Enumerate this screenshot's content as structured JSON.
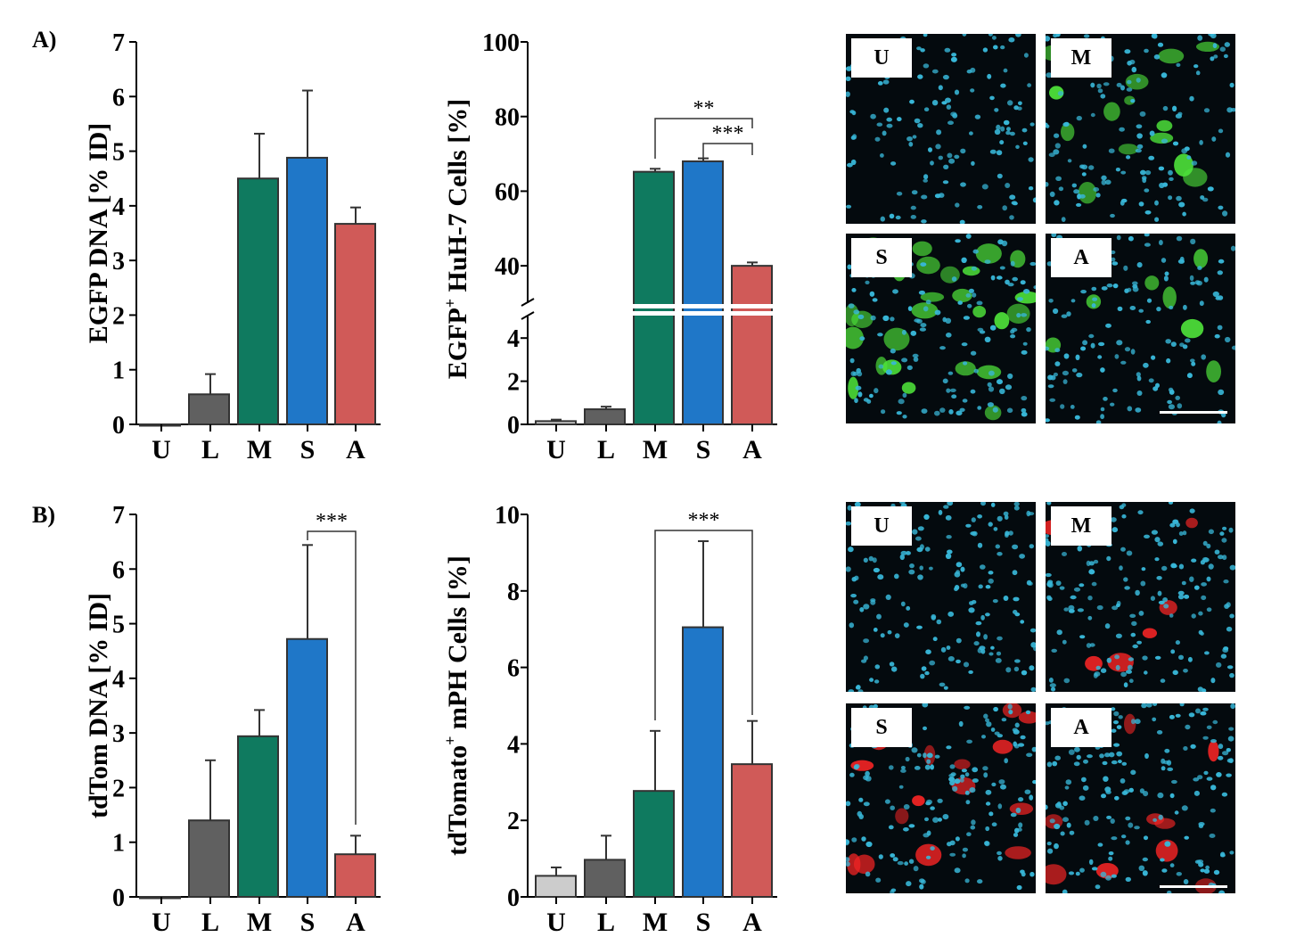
{
  "panel_labels": [
    "A)",
    "B)"
  ],
  "colors": {
    "U": "#cccccc",
    "L": "#606060",
    "M": "#0f7a5f",
    "S": "#1f77c8",
    "A": "#d05a58",
    "nuclei": "#38b7d8",
    "egfp": "#4ee23a",
    "tdtomato": "#f02424"
  },
  "micrographs": {
    "egfp": [
      {
        "label": "U"
      },
      {
        "label": "M"
      },
      {
        "label": "S"
      },
      {
        "label": "A"
      }
    ],
    "tdtomato": [
      {
        "label": "U"
      },
      {
        "label": "M"
      },
      {
        "label": "S"
      },
      {
        "label": "A"
      }
    ]
  },
  "chart_data": [
    {
      "type": "bar",
      "panel": "A",
      "categories": [
        "U",
        "L",
        "M",
        "S",
        "A"
      ],
      "values": [
        0.0,
        0.55,
        4.5,
        4.88,
        3.67
      ],
      "errors": [
        0.0,
        0.37,
        0.82,
        1.23,
        0.3
      ],
      "ylabel": "EGFP DNA [% ID]",
      "ylim": [
        0,
        7
      ],
      "yticks": [
        0,
        1,
        2,
        3,
        4,
        5,
        6,
        7
      ],
      "significance": []
    },
    {
      "type": "bar",
      "panel": "A",
      "categories": [
        "U",
        "L",
        "M",
        "S",
        "A"
      ],
      "values": [
        0.15,
        0.7,
        65.2,
        68.0,
        40.0
      ],
      "errors": [
        0.07,
        0.12,
        0.8,
        0.8,
        0.9
      ],
      "ylabel": "EGFP+ HuH-7 Cells [%]",
      "ylabel_main": "EGFP",
      "ylabel_sup": "+",
      "ylabel_rest": " HuH-7 Cells [%]",
      "axis_break": {
        "lower_ylim": [
          0,
          5
        ],
        "lower_yticks": [
          0,
          2,
          4
        ],
        "upper_ylim": [
          30,
          100
        ],
        "upper_yticks": [
          40,
          60,
          80,
          100
        ]
      },
      "significance": [
        {
          "from": "M",
          "to": "A",
          "label": "**"
        },
        {
          "from": "S",
          "to": "A",
          "label": "***"
        }
      ]
    },
    {
      "type": "bar",
      "panel": "B",
      "categories": [
        "U",
        "L",
        "M",
        "S",
        "A"
      ],
      "values": [
        0.0,
        1.4,
        2.94,
        4.72,
        0.78
      ],
      "errors": [
        0.0,
        1.1,
        0.48,
        1.72,
        0.34
      ],
      "ylabel": "tdTom DNA [% ID]",
      "ylim": [
        0,
        7
      ],
      "yticks": [
        0,
        1,
        2,
        3,
        4,
        5,
        6,
        7
      ],
      "significance": [
        {
          "from": "S",
          "to": "A",
          "label": "***"
        }
      ]
    },
    {
      "type": "bar",
      "panel": "B",
      "categories": [
        "U",
        "L",
        "M",
        "S",
        "A"
      ],
      "values": [
        0.55,
        0.97,
        2.77,
        7.05,
        3.47
      ],
      "errors": [
        0.22,
        0.63,
        1.57,
        2.25,
        1.13
      ],
      "ylabel": "tdTomato+ mPH Cells [%]",
      "ylabel_main": "tdTomato",
      "ylabel_sup": "+",
      "ylabel_rest": " mPH Cells [%]",
      "ylim": [
        0,
        10
      ],
      "yticks": [
        0,
        2,
        4,
        6,
        8,
        10
      ],
      "significance": [
        {
          "from": "M",
          "to": "A",
          "label": "***"
        }
      ]
    }
  ]
}
